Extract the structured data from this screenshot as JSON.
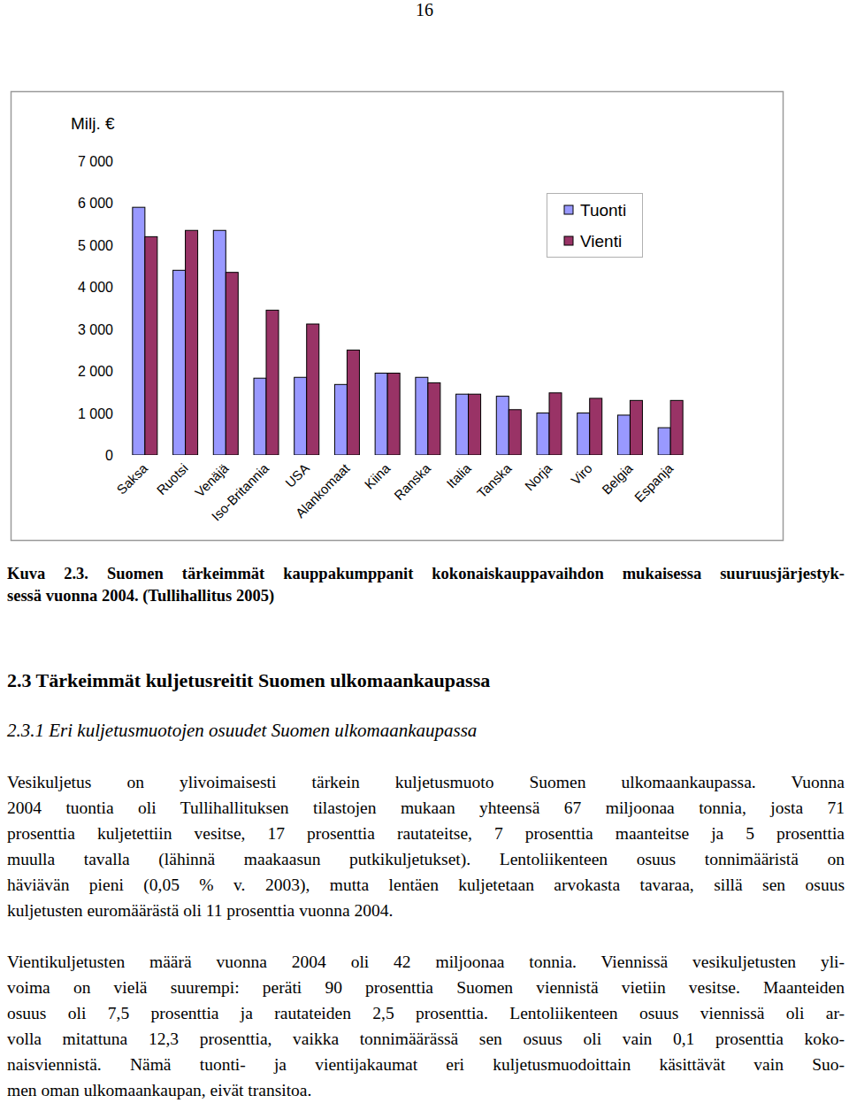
{
  "page_number": "16",
  "chart_data": {
    "type": "bar",
    "y_label": "Milj. €",
    "categories": [
      "Saksa",
      "Ruotsi",
      "Venäjä",
      "Iso-Britannia",
      "USA",
      "Alankomaat",
      "Kiina",
      "Ranska",
      "Italia",
      "Tanska",
      "Norja",
      "Viro",
      "Belgia",
      "Espanja"
    ],
    "series": [
      {
        "name": "Tuonti",
        "color": "#9999ff",
        "values": [
          5900,
          4400,
          5350,
          1830,
          1850,
          1680,
          1950,
          1850,
          1450,
          1400,
          1000,
          1000,
          950,
          650
        ]
      },
      {
        "name": "Vienti",
        "color": "#993366",
        "values": [
          5200,
          5350,
          4350,
          3450,
          3120,
          2500,
          1950,
          1720,
          1450,
          1080,
          1480,
          1350,
          1300,
          1300
        ]
      }
    ],
    "ylim": [
      0,
      7000
    ],
    "yticks": [
      0,
      {
        "value": 1000,
        "label": "1 000"
      },
      {
        "value": 2000,
        "label": "2 000"
      },
      {
        "value": 3000,
        "label": "3 000"
      },
      {
        "value": 4000,
        "label": "4 000"
      },
      {
        "value": 5000,
        "label": "5 000"
      },
      {
        "value": 6000,
        "label": "6 000"
      },
      {
        "value": 7000,
        "label": "7 000"
      }
    ],
    "grid": false,
    "legend": "upper right"
  },
  "caption": [
    "Kuva 2.3. Suomen tärkeimmät kauppakumppanit kokonaiskauppavaihdon mukaisessa suuruusjärjestyk-",
    "sessä vuonna 2004. (Tullihallitus 2005)"
  ],
  "heading": "2.3 Tärkeimmät kuljetusreitit Suomen ulkomaankaupassa",
  "subheading": "2.3.1 Eri kuljetusmuotojen osuudet Suomen ulkomaankaupassa",
  "paragraphs": [
    [
      "Vesikuljetus on ylivoimaisesti tärkein kuljetusmuoto Suomen ulkomaankaupassa. Vuonna",
      "2004 tuontia oli Tullihallituksen tilastojen mukaan yhteensä 67 miljoonaa tonnia, josta 71",
      "prosenttia kuljetettiin vesitse, 17 prosenttia rautateitse, 7 prosenttia maanteitse ja 5 prosenttia",
      "muulla tavalla (lähinnä maakaasun putkikuljetukset). Lentoliikenteen osuus tonnimääristä on",
      "häviävän pieni (0,05 % v. 2003), mutta lentäen kuljetetaan arvokasta tavaraa, sillä sen osuus",
      "kuljetusten euromäärästä oli 11 prosenttia vuonna 2004."
    ],
    [
      "Vientikuljetusten määrä vuonna 2004 oli 42 miljoonaa tonnia. Viennissä vesikuljetusten yli-",
      "voima on vielä suurempi: peräti 90 prosenttia Suomen viennistä vietiin vesitse. Maanteiden",
      "osuus oli 7,5 prosenttia ja rautateiden 2,5 prosenttia. Lentoliikenteen osuus viennissä oli ar-",
      "volla mitattuna 12,3 prosenttia, vaikka tonnimäärässä sen osuus oli vain 0,1 prosenttia koko-",
      "naisviennistä. Nämä tuonti- ja vientijakaumat eri kuljetusmuodoittain käsittävät vain Suo-",
      "men oman ulkomaankaupan, eivät transitoa."
    ]
  ]
}
